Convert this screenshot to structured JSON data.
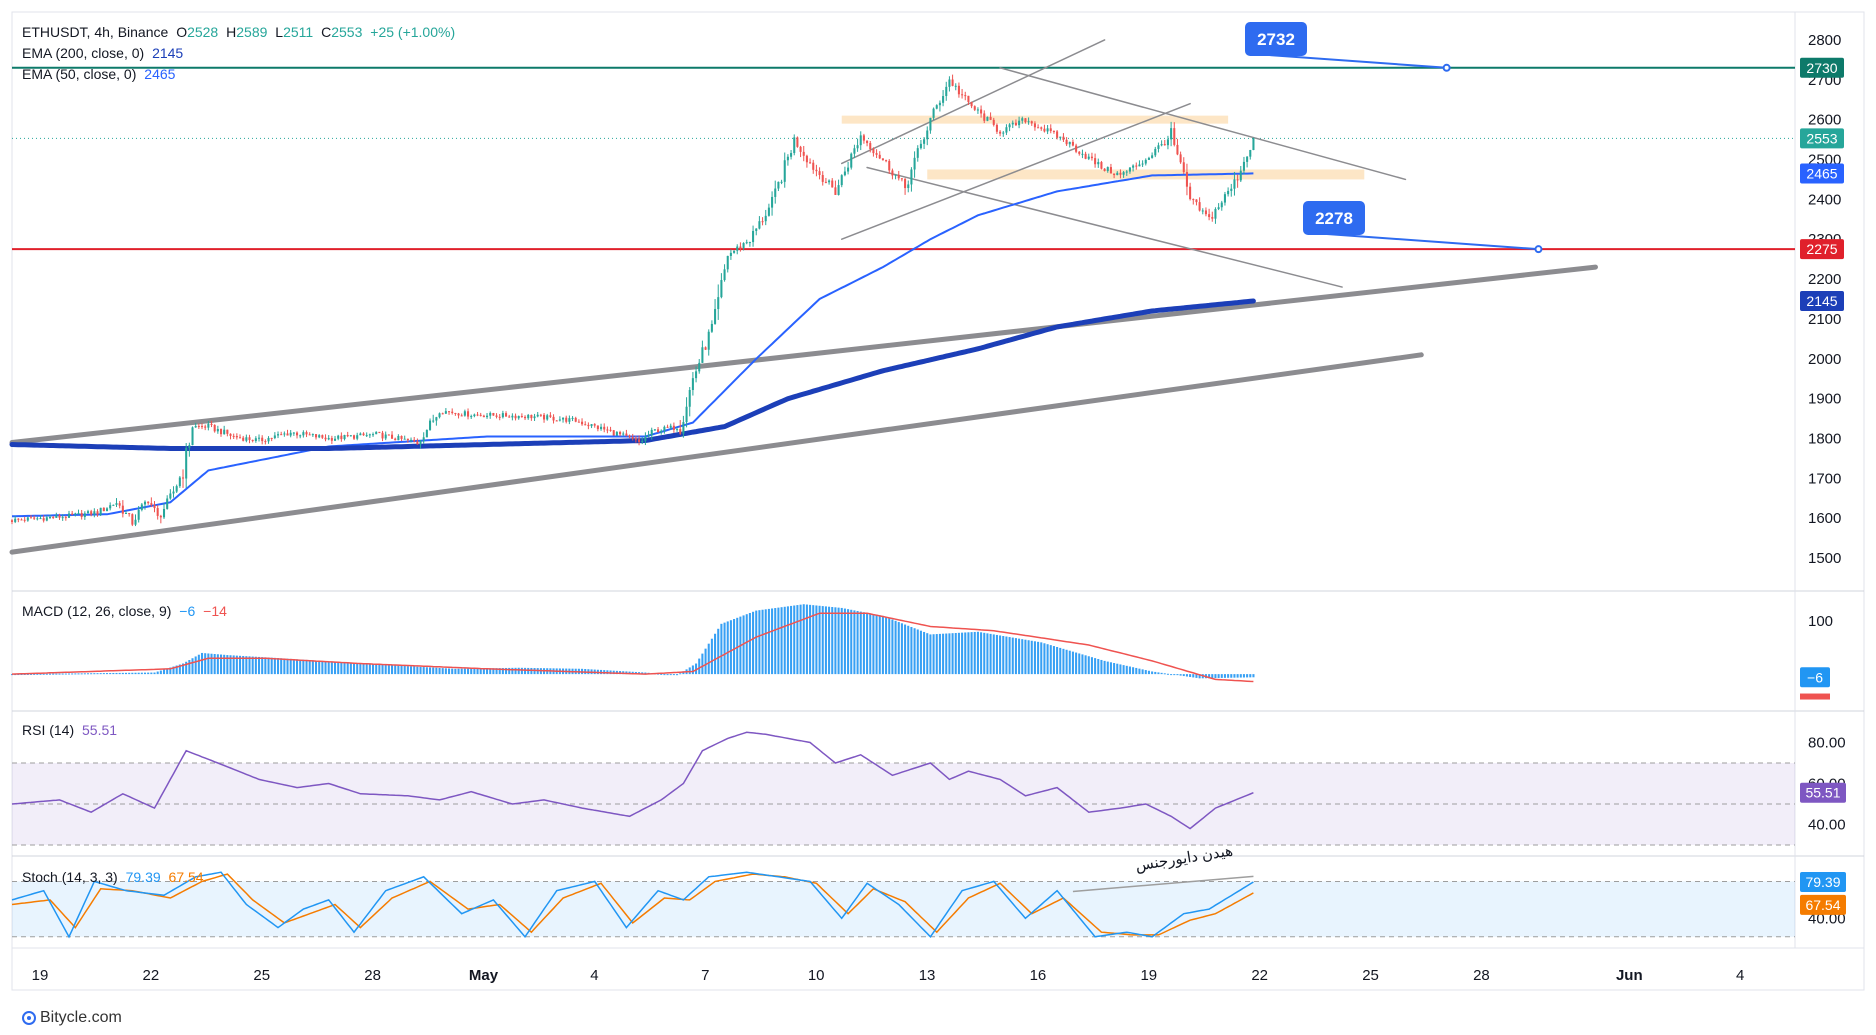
{
  "header": {
    "symbol": "ETHUSDT, 4h, Binance",
    "o_label": "O",
    "o_value": "2528",
    "h_label": "H",
    "h_value": "2589",
    "l_label": "L",
    "l_value": "2511",
    "c_label": "C",
    "c_value": "2553",
    "change": "+25 (+1.00%)"
  },
  "indicators": {
    "ema200_label": "EMA (200, close, 0)",
    "ema200_value": "2145",
    "ema50_label": "EMA (50, close, 0)",
    "ema50_value": "2465",
    "macd_label": "MACD (12, 26, close, 9)",
    "macd_value1": "−6",
    "macd_value2": "−14",
    "rsi_label": "RSI (14)",
    "rsi_value": "55.51",
    "stoch_label": "Stoch (14, 3, 3)",
    "stoch_k": "79.39",
    "stoch_d": "67.54"
  },
  "footer": {
    "brand": "Bitycle.com"
  },
  "colors": {
    "up": "#26a69a",
    "down": "#ef5350",
    "ema200": "#1c3fb8",
    "ema50": "#2962ff",
    "resistance": "#0d7a6a",
    "support": "#e0202b",
    "trend": "#8c8c90",
    "zone": "#fde3c0",
    "callout": "#2e6bf0",
    "macd_hist": "#2196f3",
    "rsi": "#7e57c2",
    "stoch_k": "#2196f3",
    "stoch_d": "#f57c00"
  },
  "chart_data": [
    {
      "type": "candlestick",
      "title": "ETHUSDT, 4h, Binance",
      "x_ticks": [
        "19",
        "22",
        "25",
        "28",
        "May",
        "4",
        "7",
        "10",
        "13",
        "16",
        "19",
        "22",
        "25",
        "28",
        "Jun",
        "4"
      ],
      "y_ticks": [
        2800,
        2700,
        2600,
        2500,
        2400,
        2300,
        2200,
        2100,
        2000,
        1900,
        1800,
        1700,
        1600,
        1500
      ],
      "ylim": [
        1420,
        2870
      ],
      "last_price": 2553,
      "price_labels": [
        {
          "value": "2730",
          "kind": "resistance"
        },
        {
          "value": "2553",
          "kind": "price"
        },
        {
          "value": "2465",
          "kind": "ema50"
        },
        {
          "value": "2275",
          "kind": "support"
        },
        {
          "value": "2145",
          "kind": "ema200"
        }
      ],
      "callouts": [
        "2732",
        "2278"
      ],
      "horizontal_lines": [
        2730,
        2275
      ],
      "supply_zones": [
        [
          2590,
          2610
        ],
        [
          2450,
          2475
        ]
      ],
      "price_path": [
        [
          0,
          1595
        ],
        [
          9,
          1600
        ],
        [
          18,
          1605
        ],
        [
          27,
          1615
        ],
        [
          33,
          1640
        ],
        [
          38,
          1590
        ],
        [
          43,
          1650
        ],
        [
          46,
          1600
        ],
        [
          50,
          1650
        ],
        [
          54,
          1720
        ],
        [
          57,
          1830
        ],
        [
          62,
          1830
        ],
        [
          70,
          1805
        ],
        [
          78,
          1795
        ],
        [
          88,
          1815
        ],
        [
          100,
          1800
        ],
        [
          115,
          1810
        ],
        [
          128,
          1790
        ],
        [
          135,
          1870
        ],
        [
          145,
          1860
        ],
        [
          165,
          1855
        ],
        [
          178,
          1845
        ],
        [
          190,
          1815
        ],
        [
          198,
          1790
        ],
        [
          203,
          1820
        ],
        [
          211,
          1830
        ],
        [
          215,
          1950
        ],
        [
          222,
          2100
        ],
        [
          226,
          2260
        ],
        [
          233,
          2300
        ],
        [
          240,
          2390
        ],
        [
          247,
          2550
        ],
        [
          253,
          2480
        ],
        [
          260,
          2420
        ],
        [
          268,
          2560
        ],
        [
          276,
          2490
        ],
        [
          282,
          2430
        ],
        [
          290,
          2600
        ],
        [
          296,
          2700
        ],
        [
          302,
          2640
        ],
        [
          312,
          2570
        ],
        [
          320,
          2600
        ],
        [
          332,
          2550
        ],
        [
          344,
          2480
        ],
        [
          350,
          2460
        ],
        [
          358,
          2500
        ],
        [
          366,
          2560
        ],
        [
          372,
          2400
        ],
        [
          378,
          2350
        ],
        [
          386,
          2440
        ],
        [
          392,
          2553
        ]
      ],
      "ema200": [
        [
          0,
          1785
        ],
        [
          50,
          1775
        ],
        [
          100,
          1775
        ],
        [
          150,
          1785
        ],
        [
          200,
          1795
        ],
        [
          225,
          1830
        ],
        [
          245,
          1900
        ],
        [
          275,
          1970
        ],
        [
          305,
          2025
        ],
        [
          330,
          2080
        ],
        [
          360,
          2120
        ],
        [
          392,
          2145
        ]
      ],
      "ema50": [
        [
          0,
          1605
        ],
        [
          30,
          1610
        ],
        [
          50,
          1640
        ],
        [
          62,
          1720
        ],
        [
          100,
          1780
        ],
        [
          150,
          1805
        ],
        [
          200,
          1805
        ],
        [
          215,
          1840
        ],
        [
          235,
          2000
        ],
        [
          255,
          2150
        ],
        [
          275,
          2230
        ],
        [
          290,
          2300
        ],
        [
          305,
          2360
        ],
        [
          330,
          2420
        ],
        [
          360,
          2460
        ],
        [
          392,
          2465
        ]
      ],
      "trendlines": [
        {
          "name": "ascending-channel-upper",
          "from": [
            0,
            1790
          ],
          "to": [
            500,
            2230
          ],
          "width": "heavy"
        },
        {
          "name": "ascending-channel-lower",
          "from": [
            0,
            1515
          ],
          "to": [
            445,
            2010
          ],
          "width": "heavy"
        },
        {
          "name": "descending-channel-upper",
          "from": [
            312,
            2730
          ],
          "to": [
            440,
            2450
          ],
          "width": "thin"
        },
        {
          "name": "descending-channel-lower",
          "from": [
            270,
            2480
          ],
          "to": [
            420,
            2180
          ],
          "width": "thin"
        },
        {
          "name": "rising-wedge-upper",
          "from": [
            262,
            2490
          ],
          "to": [
            345,
            2800
          ],
          "width": "thin"
        },
        {
          "name": "rising-wedge-lower",
          "from": [
            262,
            2300
          ],
          "to": [
            372,
            2640
          ],
          "width": "thin"
        }
      ]
    },
    {
      "type": "histogram",
      "title": "MACD (12, 26, close, 9)",
      "series": [
        {
          "name": "histogram",
          "points": [
            [
              0,
              0
            ],
            [
              45,
              3
            ],
            [
              54,
              20
            ],
            [
              60,
              40
            ],
            [
              68,
              36
            ],
            [
              85,
              30
            ],
            [
              110,
              20
            ],
            [
              140,
              10
            ],
            [
              160,
              12
            ],
            [
              180,
              10
            ],
            [
              200,
              3
            ],
            [
              210,
              -2
            ],
            [
              216,
              20
            ],
            [
              224,
              95
            ],
            [
              235,
              120
            ],
            [
              250,
              132
            ],
            [
              262,
              125
            ],
            [
              275,
              110
            ],
            [
              290,
              75
            ],
            [
              305,
              80
            ],
            [
              325,
              60
            ],
            [
              345,
              25
            ],
            [
              360,
              5
            ],
            [
              375,
              -8
            ],
            [
              392,
              -6
            ]
          ]
        },
        {
          "name": "signal",
          "points": [
            [
              0,
              0
            ],
            [
              50,
              10
            ],
            [
              62,
              30
            ],
            [
              80,
              30
            ],
            [
              110,
              20
            ],
            [
              150,
              10
            ],
            [
              200,
              0
            ],
            [
              215,
              5
            ],
            [
              235,
              70
            ],
            [
              255,
              115
            ],
            [
              270,
              115
            ],
            [
              290,
              90
            ],
            [
              310,
              82
            ],
            [
              340,
              55
            ],
            [
              360,
              25
            ],
            [
              380,
              -10
            ],
            [
              392,
              -14
            ]
          ]
        }
      ],
      "y_ticks": [
        100
      ],
      "ylim": [
        -30,
        140
      ],
      "value_labels": [
        "−6",
        "−14"
      ]
    },
    {
      "type": "line",
      "title": "RSI (14)",
      "series": [
        {
          "name": "RSI",
          "points": [
            [
              0,
              50
            ],
            [
              15,
              52
            ],
            [
              25,
              46
            ],
            [
              35,
              55
            ],
            [
              45,
              48
            ],
            [
              55,
              76
            ],
            [
              65,
              70
            ],
            [
              78,
              62
            ],
            [
              90,
              58
            ],
            [
              100,
              60
            ],
            [
              110,
              55
            ],
            [
              125,
              54
            ],
            [
              135,
              52
            ],
            [
              145,
              56
            ],
            [
              158,
              50
            ],
            [
              168,
              52
            ],
            [
              180,
              48
            ],
            [
              195,
              44
            ],
            [
              205,
              52
            ],
            [
              212,
              60
            ],
            [
              218,
              76
            ],
            [
              226,
              82
            ],
            [
              232,
              85
            ],
            [
              238,
              84
            ],
            [
              245,
              82
            ],
            [
              252,
              80
            ],
            [
              260,
              70
            ],
            [
              268,
              74
            ],
            [
              278,
              64
            ],
            [
              290,
              70
            ],
            [
              296,
              62
            ],
            [
              302,
              66
            ],
            [
              312,
              62
            ],
            [
              320,
              54
            ],
            [
              330,
              58
            ],
            [
              340,
              46
            ],
            [
              350,
              48
            ],
            [
              358,
              50
            ],
            [
              366,
              44
            ],
            [
              372,
              38
            ],
            [
              380,
              48
            ],
            [
              392,
              55.51
            ]
          ]
        }
      ],
      "y_ticks": [
        80,
        60,
        40
      ],
      "ylim": [
        30,
        90
      ],
      "bands": [
        70,
        50,
        30
      ]
    },
    {
      "type": "line",
      "title": "Stoch (14, 3, 3)",
      "series": [
        {
          "name": "%K",
          "points": [
            [
              0,
              60
            ],
            [
              10,
              70
            ],
            [
              18,
              20
            ],
            [
              26,
              80
            ],
            [
              36,
              70
            ],
            [
              48,
              65
            ],
            [
              58,
              85
            ],
            [
              66,
              90
            ],
            [
              74,
              55
            ],
            [
              84,
              30
            ],
            [
              92,
              50
            ],
            [
              100,
              60
            ],
            [
              108,
              25
            ],
            [
              118,
              70
            ],
            [
              130,
              85
            ],
            [
              142,
              45
            ],
            [
              152,
              60
            ],
            [
              162,
              20
            ],
            [
              172,
              70
            ],
            [
              184,
              80
            ],
            [
              194,
              30
            ],
            [
              204,
              70
            ],
            [
              212,
              60
            ],
            [
              220,
              85
            ],
            [
              232,
              90
            ],
            [
              242,
              85
            ],
            [
              252,
              80
            ],
            [
              262,
              40
            ],
            [
              270,
              78
            ],
            [
              280,
              55
            ],
            [
              290,
              20
            ],
            [
              300,
              70
            ],
            [
              310,
              80
            ],
            [
              320,
              40
            ],
            [
              330,
              70
            ],
            [
              342,
              20
            ],
            [
              352,
              25
            ],
            [
              360,
              20
            ],
            [
              370,
              45
            ],
            [
              378,
              50
            ],
            [
              392,
              79.39
            ]
          ]
        },
        {
          "name": "%D",
          "points": [
            [
              0,
              55
            ],
            [
              12,
              60
            ],
            [
              20,
              30
            ],
            [
              28,
              72
            ],
            [
              38,
              70
            ],
            [
              50,
              62
            ],
            [
              60,
              80
            ],
            [
              68,
              88
            ],
            [
              76,
              60
            ],
            [
              86,
              35
            ],
            [
              94,
              45
            ],
            [
              102,
              55
            ],
            [
              110,
              30
            ],
            [
              120,
              62
            ],
            [
              132,
              80
            ],
            [
              144,
              50
            ],
            [
              154,
              55
            ],
            [
              164,
              25
            ],
            [
              174,
              62
            ],
            [
              186,
              78
            ],
            [
              196,
              35
            ],
            [
              206,
              62
            ],
            [
              214,
              60
            ],
            [
              222,
              80
            ],
            [
              234,
              88
            ],
            [
              244,
              85
            ],
            [
              254,
              78
            ],
            [
              264,
              45
            ],
            [
              272,
              72
            ],
            [
              282,
              58
            ],
            [
              292,
              25
            ],
            [
              302,
              62
            ],
            [
              312,
              78
            ],
            [
              322,
              45
            ],
            [
              332,
              62
            ],
            [
              344,
              25
            ],
            [
              354,
              22
            ],
            [
              362,
              22
            ],
            [
              372,
              38
            ],
            [
              380,
              45
            ],
            [
              392,
              67.54
            ]
          ]
        }
      ],
      "y_ticks": [
        40
      ],
      "ylim": [
        10,
        100
      ],
      "bands": [
        80,
        20
      ],
      "annotation": "هیدن دایورجنس"
    }
  ]
}
